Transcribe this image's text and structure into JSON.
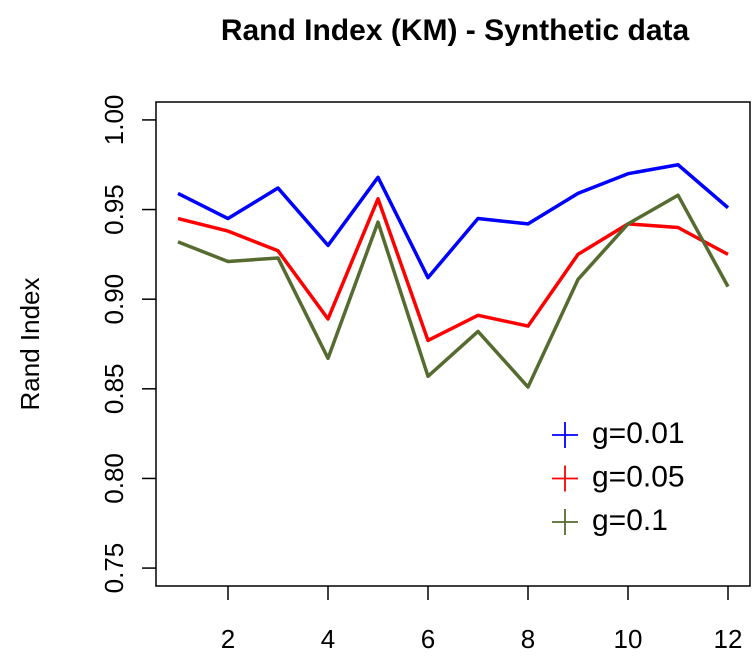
{
  "chart_data": {
    "type": "line",
    "title": "Rand Index (KM) - Synthetic data",
    "y_label": "Rand Index",
    "x": [
      1,
      2,
      3,
      4,
      5,
      6,
      7,
      8,
      9,
      10,
      11,
      12
    ],
    "series": [
      {
        "name": "g=0.01",
        "color": "#0000ff",
        "values": [
          0.959,
          0.945,
          0.962,
          0.93,
          0.968,
          0.912,
          0.945,
          0.942,
          0.959,
          0.97,
          0.975,
          0.951
        ]
      },
      {
        "name": "g=0.05",
        "color": "#ff0000",
        "values": [
          0.945,
          0.938,
          0.927,
          0.889,
          0.956,
          0.877,
          0.891,
          0.885,
          0.925,
          0.942,
          0.94,
          0.925
        ]
      },
      {
        "name": "g=0.1",
        "color": "#556b2f",
        "values": [
          0.932,
          0.921,
          0.923,
          0.867,
          0.943,
          0.857,
          0.882,
          0.851,
          0.911,
          0.942,
          0.958,
          0.907
        ]
      }
    ],
    "xlim": [
      0.56,
      12.44
    ],
    "xticks": [
      2,
      4,
      6,
      8,
      10,
      12
    ],
    "ylim": [
      0.74,
      1.01
    ],
    "yticks": [
      {
        "value": 0.75,
        "label": "0.75"
      },
      {
        "value": 0.8,
        "label": "0.80"
      },
      {
        "value": 0.85,
        "label": "0.85"
      },
      {
        "value": 0.9,
        "label": "0.90"
      },
      {
        "value": 0.95,
        "label": "0.95"
      },
      {
        "value": 1.0,
        "label": "1.00"
      }
    ],
    "legend": "bottomright"
  }
}
